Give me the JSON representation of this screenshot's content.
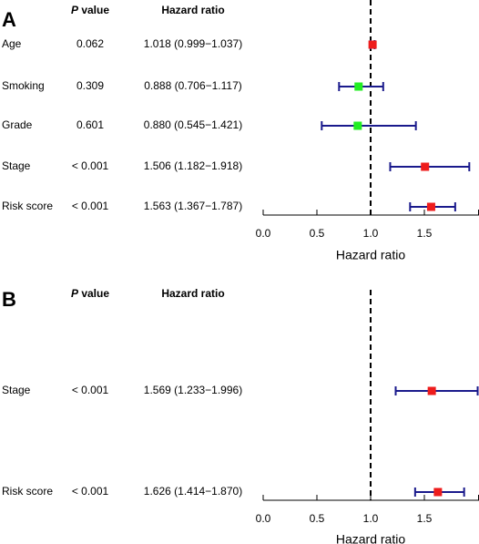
{
  "chart_data": [
    {
      "type": "forest",
      "panel": "A",
      "headers": {
        "p_italic": "P",
        "p_rest": " value",
        "hr": "Hazard ratio"
      },
      "xlabel": "Hazard ratio",
      "xlim": [
        0.0,
        1.9
      ],
      "xticks": [
        0.0,
        0.5,
        1.0,
        1.5
      ],
      "tick_labels": [
        "0.0",
        "0.5",
        "1.0",
        "1.5"
      ],
      "reference": 1.0,
      "rows": [
        {
          "label": "Age",
          "p": "0.062",
          "hr_text": "1.018 (0.999−1.037)",
          "hr": 1.018,
          "lo": 0.999,
          "hi": 1.037,
          "color": "#ee1c1c"
        },
        {
          "label": "Smoking",
          "p": "0.309",
          "hr_text": "0.888 (0.706−1.117)",
          "hr": 0.888,
          "lo": 0.706,
          "hi": 1.117,
          "color": "#22ee22"
        },
        {
          "label": "Grade",
          "p": "0.601",
          "hr_text": "0.880 (0.545−1.421)",
          "hr": 0.88,
          "lo": 0.545,
          "hi": 1.421,
          "color": "#22ee22"
        },
        {
          "label": "Stage",
          "p": "< 0.001",
          "hr_text": "1.506 (1.182−1.918)",
          "hr": 1.506,
          "lo": 1.182,
          "hi": 1.918,
          "color": "#ee1c1c"
        },
        {
          "label": "Risk score",
          "p": "< 0.001",
          "hr_text": "1.563 (1.367−1.787)",
          "hr": 1.563,
          "lo": 1.367,
          "hi": 1.787,
          "color": "#ee1c1c"
        }
      ]
    },
    {
      "type": "forest",
      "panel": "B",
      "headers": {
        "p_italic": "P",
        "p_rest": " value",
        "hr": "Hazard ratio"
      },
      "xlabel": "Hazard ratio",
      "xlim": [
        0.0,
        1.9
      ],
      "xticks": [
        0.0,
        0.5,
        1.0,
        1.5
      ],
      "tick_labels": [
        "0.0",
        "0.5",
        "1.0",
        "1.5"
      ],
      "reference": 1.0,
      "rows": [
        {
          "label": "Stage",
          "p": "< 0.001",
          "hr_text": "1.569 (1.233−1.996)",
          "hr": 1.569,
          "lo": 1.233,
          "hi": 1.996,
          "color": "#ee1c1c"
        },
        {
          "label": "Risk score",
          "p": "< 0.001",
          "hr_text": "1.626 (1.414−1.870)",
          "hr": 1.626,
          "lo": 1.414,
          "hi": 1.87,
          "color": "#ee1c1c"
        }
      ]
    }
  ],
  "colors": {
    "whisker": "#1a1a8c",
    "axis": "#000000"
  }
}
